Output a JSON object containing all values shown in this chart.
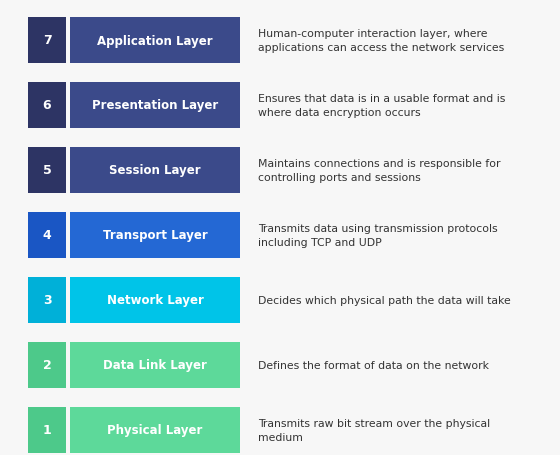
{
  "layers": [
    {
      "number": 7,
      "name": "Application Layer",
      "description": "Human-computer interaction layer, where\napplications can access the network services",
      "num_bg": "#2d3464",
      "bar_bg": "#3b4a8a"
    },
    {
      "number": 6,
      "name": "Presentation Layer",
      "description": "Ensures that data is in a usable format and is\nwhere data encryption occurs",
      "num_bg": "#2d3464",
      "bar_bg": "#3b4a8a"
    },
    {
      "number": 5,
      "name": "Session Layer",
      "description": "Maintains connections and is responsible for\ncontrolling ports and sessions",
      "num_bg": "#2d3464",
      "bar_bg": "#3b4a8a"
    },
    {
      "number": 4,
      "name": "Transport Layer",
      "description": "Transmits data using transmission protocols\nincluding TCP and UDP",
      "num_bg": "#1a56c4",
      "bar_bg": "#2468d4"
    },
    {
      "number": 3,
      "name": "Network Layer",
      "description": "Decides which physical path the data will take",
      "num_bg": "#00b0d8",
      "bar_bg": "#00c4e8"
    },
    {
      "number": 2,
      "name": "Data Link Layer",
      "description": "Defines the format of data on the network",
      "num_bg": "#4dc98a",
      "bar_bg": "#5dd99a"
    },
    {
      "number": 1,
      "name": "Physical Layer",
      "description": "Transmits raw bit stream over the physical\nmedium",
      "num_bg": "#4dc98a",
      "bar_bg": "#5dd99a"
    }
  ],
  "background_color": "#f7f7f7",
  "text_color": "#333333",
  "white": "#ffffff",
  "fig_width": 5.6,
  "fig_height": 4.56,
  "dpi": 100
}
